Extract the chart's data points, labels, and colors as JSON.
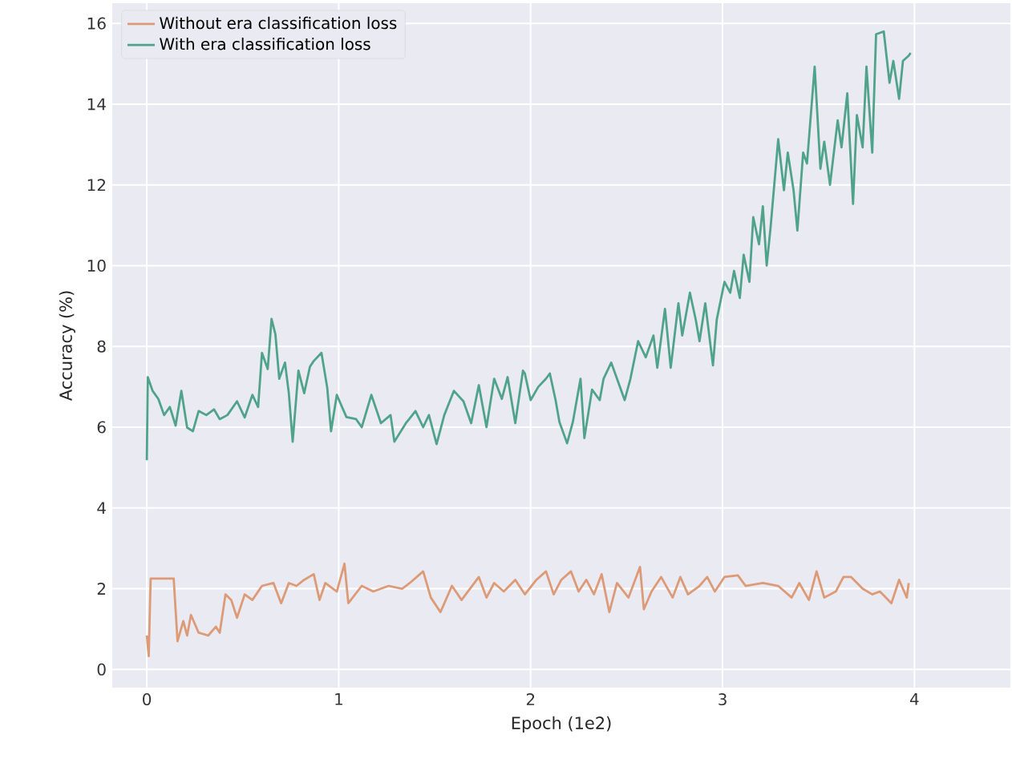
{
  "chart_data": {
    "type": "line",
    "xlabel": "Epoch (1e2)",
    "ylabel": "Accuracy (%)",
    "xlim": [
      -0.18,
      4.5
    ],
    "ylim": [
      -0.45,
      16.5
    ],
    "xticks": [
      0,
      1,
      2,
      3,
      4
    ],
    "yticks": [
      0,
      2,
      4,
      6,
      8,
      10,
      12,
      14,
      16
    ],
    "grid": true,
    "legend": "top left",
    "series": [
      {
        "name": "Without era classification loss",
        "color": "#dd9a77",
        "x": [
          0.0,
          0.01,
          0.02,
          0.14,
          0.16,
          0.19,
          0.21,
          0.23,
          0.27,
          0.32,
          0.36,
          0.38,
          0.41,
          0.44,
          0.47,
          0.51,
          0.55,
          0.6,
          0.66,
          0.7,
          0.74,
          0.78,
          0.82,
          0.87,
          0.9,
          0.93,
          0.99,
          1.03,
          1.05,
          1.12,
          1.18,
          1.26,
          1.33,
          1.37,
          1.44,
          1.48,
          1.53,
          1.59,
          1.64,
          1.73,
          1.77,
          1.81,
          1.86,
          1.92,
          1.97,
          2.03,
          2.08,
          2.12,
          2.16,
          2.21,
          2.25,
          2.29,
          2.33,
          2.37,
          2.41,
          2.45,
          2.51,
          2.57,
          2.59,
          2.63,
          2.68,
          2.74,
          2.78,
          2.82,
          2.88,
          2.92,
          2.96,
          3.01,
          3.08,
          3.12,
          3.21,
          3.29,
          3.36,
          3.4,
          3.45,
          3.49,
          3.53,
          3.59,
          3.63,
          3.67,
          3.73,
          3.78,
          3.82,
          3.88,
          3.92,
          3.96,
          3.97
        ],
        "values": [
          0.84,
          0.33,
          2.25,
          2.25,
          0.7,
          1.2,
          0.84,
          1.35,
          0.91,
          0.84,
          1.06,
          0.91,
          1.86,
          1.72,
          1.28,
          1.86,
          1.72,
          2.07,
          2.14,
          1.64,
          2.14,
          2.07,
          2.22,
          2.36,
          1.72,
          2.14,
          1.93,
          2.62,
          1.64,
          2.07,
          1.93,
          2.07,
          2.0,
          2.14,
          2.43,
          1.78,
          1.42,
          2.07,
          1.72,
          2.29,
          1.78,
          2.14,
          1.93,
          2.22,
          1.86,
          2.22,
          2.43,
          1.86,
          2.22,
          2.43,
          1.93,
          2.22,
          1.86,
          2.36,
          1.42,
          2.14,
          1.78,
          2.54,
          1.49,
          1.93,
          2.29,
          1.78,
          2.29,
          1.86,
          2.07,
          2.29,
          1.93,
          2.29,
          2.33,
          2.07,
          2.14,
          2.07,
          1.78,
          2.14,
          1.72,
          2.43,
          1.78,
          1.93,
          2.29,
          2.29,
          2.0,
          1.86,
          1.93,
          1.64,
          2.22,
          1.78,
          2.14
        ]
      },
      {
        "name": "With era classification loss",
        "color": "#4fa38a",
        "x": [
          0.0,
          0.005,
          0.03,
          0.06,
          0.09,
          0.12,
          0.15,
          0.18,
          0.21,
          0.24,
          0.27,
          0.31,
          0.35,
          0.38,
          0.42,
          0.47,
          0.51,
          0.55,
          0.58,
          0.6,
          0.63,
          0.65,
          0.67,
          0.69,
          0.72,
          0.74,
          0.76,
          0.79,
          0.82,
          0.85,
          0.87,
          0.91,
          0.94,
          0.96,
          0.99,
          1.04,
          1.09,
          1.12,
          1.17,
          1.22,
          1.27,
          1.29,
          1.35,
          1.4,
          1.44,
          1.47,
          1.51,
          1.55,
          1.6,
          1.65,
          1.69,
          1.73,
          1.77,
          1.81,
          1.85,
          1.88,
          1.92,
          1.96,
          1.97,
          2.0,
          2.04,
          2.08,
          2.1,
          2.13,
          2.15,
          2.19,
          2.22,
          2.26,
          2.28,
          2.32,
          2.36,
          2.38,
          2.42,
          2.45,
          2.49,
          2.52,
          2.56,
          2.6,
          2.64,
          2.66,
          2.7,
          2.73,
          2.77,
          2.79,
          2.83,
          2.86,
          2.88,
          2.91,
          2.95,
          2.97,
          3.01,
          3.04,
          3.06,
          3.09,
          3.11,
          3.14,
          3.16,
          3.19,
          3.21,
          3.23,
          3.25,
          3.29,
          3.32,
          3.34,
          3.37,
          3.39,
          3.42,
          3.44,
          3.48,
          3.51,
          3.53,
          3.56,
          3.6,
          3.62,
          3.65,
          3.68,
          3.7,
          3.73,
          3.75,
          3.78,
          3.8,
          3.84,
          3.87,
          3.89,
          3.92,
          3.94,
          3.97,
          3.98
        ],
        "values": [
          5.18,
          7.24,
          6.9,
          6.7,
          6.3,
          6.5,
          6.04,
          6.9,
          5.99,
          5.9,
          6.4,
          6.3,
          6.44,
          6.2,
          6.3,
          6.64,
          6.24,
          6.8,
          6.5,
          7.84,
          7.44,
          8.68,
          8.3,
          7.2,
          7.6,
          6.84,
          5.64,
          7.4,
          6.84,
          7.5,
          7.64,
          7.84,
          6.98,
          5.9,
          6.8,
          6.25,
          6.2,
          6.0,
          6.8,
          6.1,
          6.3,
          5.64,
          6.1,
          6.4,
          6.0,
          6.3,
          5.58,
          6.3,
          6.9,
          6.64,
          6.1,
          7.04,
          6.0,
          7.2,
          6.7,
          7.24,
          6.1,
          7.4,
          7.33,
          6.67,
          7.0,
          7.2,
          7.33,
          6.67,
          6.13,
          5.6,
          6.13,
          7.2,
          5.73,
          6.93,
          6.67,
          7.2,
          7.6,
          7.2,
          6.67,
          7.2,
          8.13,
          7.73,
          8.27,
          7.47,
          8.93,
          7.47,
          9.07,
          8.27,
          9.33,
          8.67,
          8.13,
          9.07,
          7.53,
          8.67,
          9.6,
          9.33,
          9.87,
          9.2,
          10.27,
          9.6,
          11.2,
          10.53,
          11.47,
          10.0,
          10.93,
          13.13,
          11.87,
          12.8,
          11.87,
          10.87,
          12.8,
          12.53,
          14.93,
          12.4,
          13.07,
          12.0,
          13.6,
          12.93,
          14.27,
          11.53,
          13.73,
          12.93,
          14.93,
          12.8,
          15.73,
          15.8,
          14.53,
          15.07,
          14.13,
          15.07,
          15.2,
          15.27
        ]
      }
    ]
  }
}
